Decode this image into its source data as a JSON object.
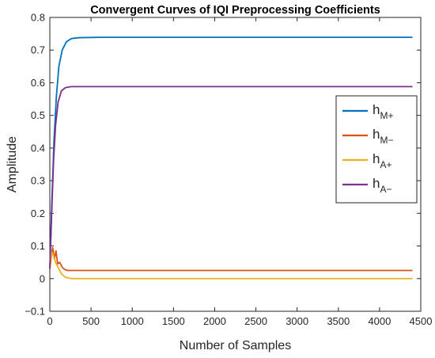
{
  "chart_data": {
    "type": "line",
    "title": "Convergent Curves of IQI Preprocessing Coefficients",
    "xlabel": "Number of Samples",
    "ylabel": "Amplitude",
    "xlim": [
      0,
      4500
    ],
    "ylim": [
      -0.1,
      0.8
    ],
    "xticks": [
      "0",
      "500",
      "1000",
      "1500",
      "2000",
      "2500",
      "3000",
      "3500",
      "4000",
      "4500"
    ],
    "yticks": [
      "-0.1",
      "0",
      "0.1",
      "0.2",
      "0.3",
      "0.4",
      "0.5",
      "0.6",
      "0.7",
      "0.8"
    ],
    "legend_position": "right",
    "series": [
      {
        "name": "M+",
        "legend_main": "h",
        "legend_sub": "M+",
        "color": "#0072BD",
        "points": [
          [
            0,
            0.03
          ],
          [
            20,
            0.2
          ],
          [
            50,
            0.42
          ],
          [
            80,
            0.56
          ],
          [
            110,
            0.65
          ],
          [
            150,
            0.7
          ],
          [
            200,
            0.725
          ],
          [
            260,
            0.735
          ],
          [
            350,
            0.738
          ],
          [
            600,
            0.739
          ],
          [
            4400,
            0.739
          ]
        ]
      },
      {
        "name": "M-",
        "legend_main": "h",
        "legend_sub": "M−",
        "color": "#D95319",
        "points": [
          [
            0,
            0.03
          ],
          [
            20,
            0.07
          ],
          [
            35,
            0.095
          ],
          [
            55,
            0.06
          ],
          [
            75,
            0.085
          ],
          [
            95,
            0.045
          ],
          [
            120,
            0.05
          ],
          [
            150,
            0.035
          ],
          [
            180,
            0.028
          ],
          [
            220,
            0.025
          ],
          [
            4400,
            0.025
          ]
        ]
      },
      {
        "name": "A+",
        "legend_main": "h",
        "legend_sub": "A+",
        "color": "#EDB120",
        "points": [
          [
            0,
            0.03
          ],
          [
            25,
            0.08
          ],
          [
            45,
            0.07
          ],
          [
            70,
            0.05
          ],
          [
            100,
            0.035
          ],
          [
            140,
            0.015
          ],
          [
            190,
            0.004
          ],
          [
            260,
            0.0
          ],
          [
            4400,
            0.0
          ]
        ]
      },
      {
        "name": "A-",
        "legend_main": "h",
        "legend_sub": "A−",
        "color": "#7E2F8E",
        "points": [
          [
            0,
            0.03
          ],
          [
            20,
            0.18
          ],
          [
            45,
            0.36
          ],
          [
            70,
            0.47
          ],
          [
            100,
            0.54
          ],
          [
            140,
            0.575
          ],
          [
            190,
            0.585
          ],
          [
            260,
            0.588
          ],
          [
            4400,
            0.588
          ]
        ]
      }
    ]
  }
}
